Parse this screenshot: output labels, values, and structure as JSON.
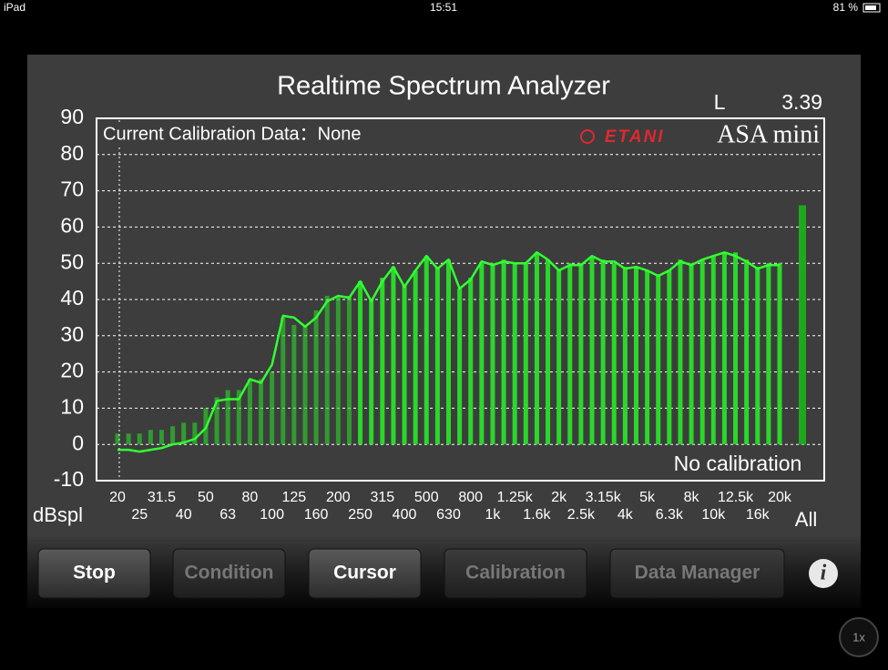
{
  "status_bar": {
    "device": "iPad",
    "time": "15:51",
    "battery": "81 %"
  },
  "chart_data": {
    "type": "bar",
    "title": "Realtime Spectrum Analyzer",
    "channel": "L",
    "reading": "3.39",
    "calibration_note": "Current Calibration Data：None",
    "logo_brand": "ETANI",
    "logo_product": "ASA mini",
    "annotation": "No calibration",
    "y_label": "dBspl",
    "ylim": [
      -10,
      90
    ],
    "yticks": [
      90,
      80,
      70,
      60,
      50,
      40,
      30,
      20,
      10,
      0,
      -10
    ],
    "grid": true,
    "categories": [
      "20",
      null,
      "25",
      null,
      "31.5",
      null,
      "40",
      null,
      "50",
      null,
      "63",
      null,
      "80",
      null,
      "100",
      null,
      "125",
      null,
      "160",
      null,
      "200",
      null,
      "250",
      null,
      "315",
      null,
      "400",
      null,
      "500",
      null,
      "630",
      null,
      "800",
      null,
      "1k",
      null,
      "1.25k",
      null,
      "1.6k",
      null,
      "2k",
      null,
      "2.5k",
      null,
      "3.15k",
      null,
      "4k",
      null,
      "5k",
      null,
      "6.3k",
      null,
      "8k",
      null,
      "10k",
      null,
      "12.5k",
      null,
      "16k",
      null,
      "20k"
    ],
    "series": [
      {
        "type": "bar",
        "color": "#2ad82a",
        "values": [
          3,
          3,
          3,
          4,
          4,
          5,
          6,
          6,
          10,
          13,
          15,
          15,
          18,
          18,
          20,
          35,
          33,
          33,
          37,
          41,
          41,
          41,
          45,
          40,
          46,
          49,
          44,
          48,
          52,
          49,
          51,
          43,
          46,
          50,
          50,
          51,
          50,
          50,
          53,
          51,
          48,
          50,
          50,
          52,
          51,
          50,
          49,
          49,
          48,
          47,
          48,
          51,
          50,
          51,
          52,
          53,
          53,
          51,
          49,
          50,
          50
        ]
      },
      {
        "type": "line",
        "color": "#33ff33",
        "values": [
          -1.5,
          -1.5,
          -2,
          -1.5,
          -1,
          0,
          0.5,
          1.5,
          4.5,
          12,
          12.5,
          12.5,
          18,
          17,
          22,
          35.5,
          35,
          32.5,
          35,
          39.5,
          41,
          40.5,
          45,
          39.5,
          45,
          49,
          43.5,
          48,
          52,
          48.5,
          51,
          43,
          45.5,
          50.5,
          49.5,
          50.5,
          50,
          50,
          53,
          51,
          48,
          49.5,
          49.5,
          52,
          50.5,
          50.5,
          48.5,
          49,
          48,
          46.5,
          48,
          50.5,
          49.5,
          51,
          52,
          53,
          52,
          50.5,
          48.5,
          49.5,
          49.5
        ]
      }
    ],
    "total": {
      "label": "All",
      "value": 66,
      "color": "#1ea81e"
    }
  },
  "toolbar": {
    "buttons": [
      {
        "label": "Stop",
        "enabled": true
      },
      {
        "label": "Condition",
        "enabled": false
      },
      {
        "label": "Cursor",
        "enabled": true
      },
      {
        "label": "Calibration",
        "enabled": false
      },
      {
        "label": "Data Manager",
        "enabled": false
      }
    ],
    "info": "i",
    "zoom": "1x"
  }
}
